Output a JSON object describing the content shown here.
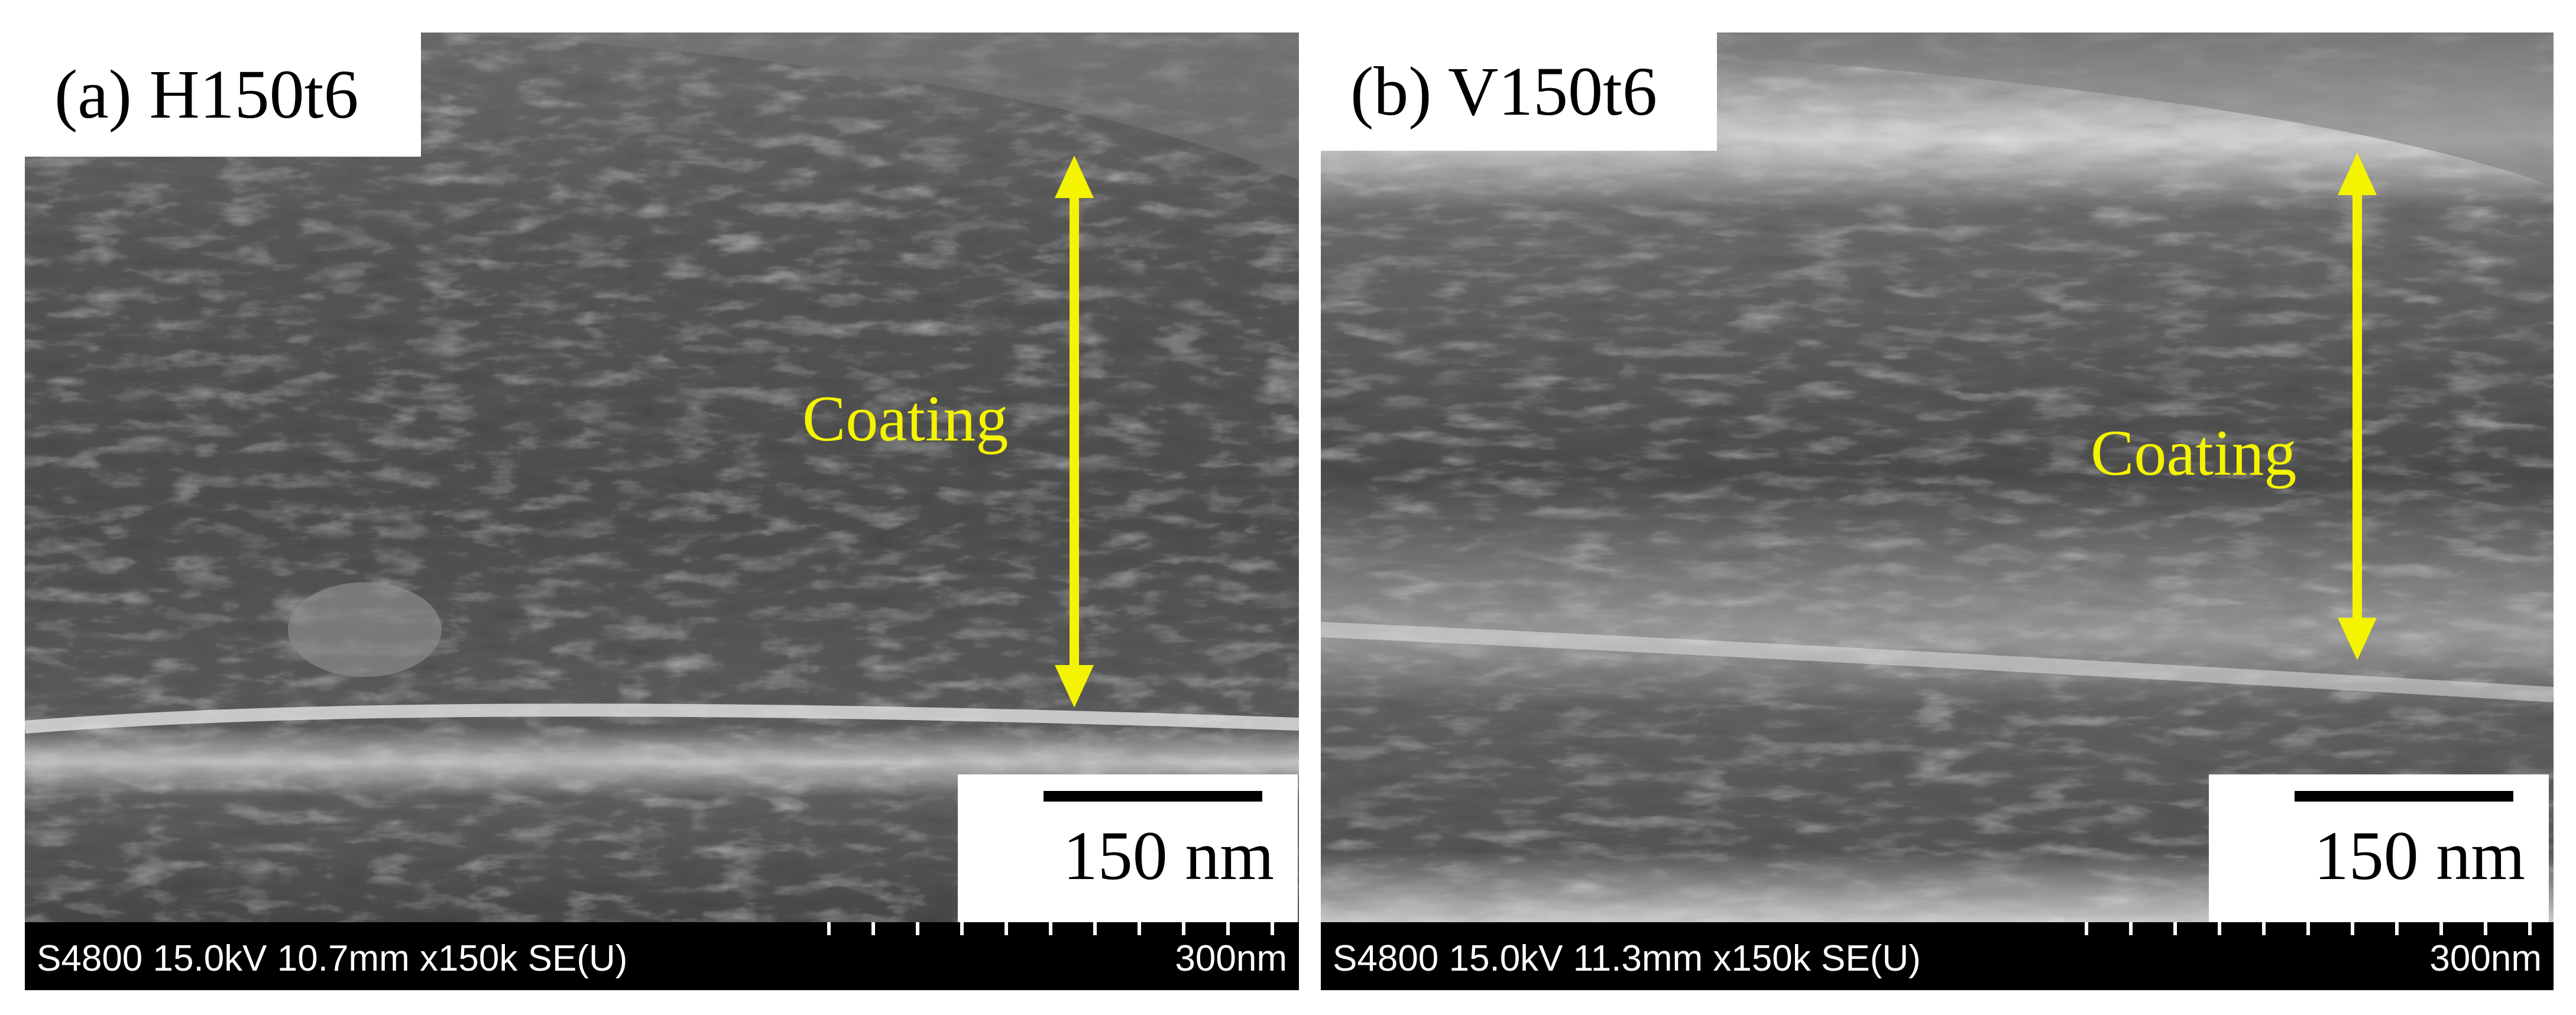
{
  "panels": [
    {
      "label": "(a) H150t6",
      "coating_label": "Coating",
      "scale_bar_text": "150 nm",
      "info_text": "S4800 15.0kV 10.7mm x150k SE(U)",
      "info_scale": "300nm"
    },
    {
      "label": "(b) V150t6",
      "coating_label": "Coating",
      "scale_bar_text": "150 nm",
      "info_text": "S4800 15.0kV 11.3mm x150k SE(U)",
      "info_scale": "300nm"
    }
  ],
  "colors": {
    "arrow": "#f4f400",
    "label_text": "#f4f400",
    "background": "#ffffff",
    "info_bar": "#000000"
  }
}
